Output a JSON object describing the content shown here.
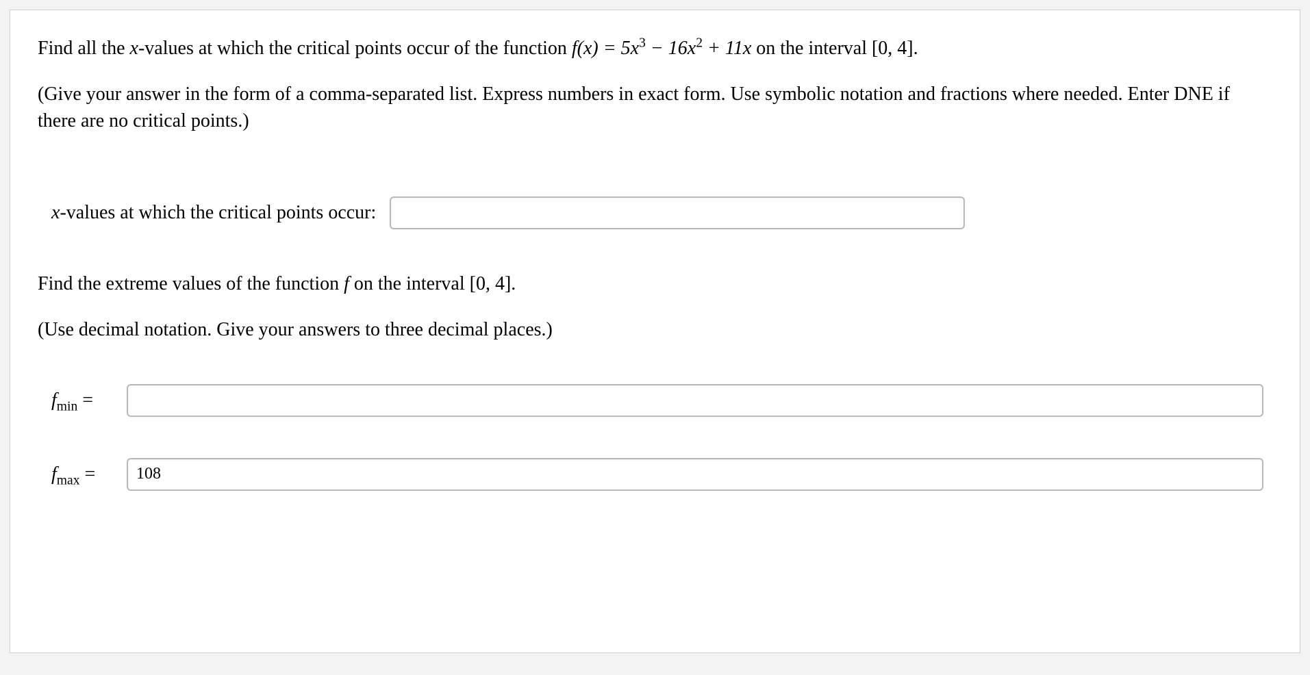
{
  "question": {
    "line1_prefix": "Find all the ",
    "line1_xvalues": "x",
    "line1_mid1": "-values at which the critical points occur of the function ",
    "fx_label": "f(x) = 5x",
    "cubed": "3",
    "minus": " − 16x",
    "squared": "2",
    "plus": " + 11x",
    "line1_suffix1": " on the interval ",
    "interval": "[0, 4].",
    "instructions": "(Give your answer in the form of a comma-separated list. Express numbers in exact form. Use symbolic notation and fractions where needed. Enter DNE if there are no critical points.)",
    "critical_label_prefix": "x",
    "critical_label_rest": "-values at which the critical points occur:",
    "part2_line1_prefix": "Find the extreme values of the function ",
    "part2_f": "f",
    "part2_line1_mid": " on the interval ",
    "part2_interval": "[0, 4].",
    "part2_instructions": "(Use decimal notation. Give your answers to three decimal places.)",
    "fmin_label_f": "f",
    "fmin_label_sub": "min",
    "eq": " =",
    "fmax_label_f": "f",
    "fmax_label_sub": "max"
  },
  "inputs": {
    "critical_points_value": "",
    "fmin_value": "",
    "fmax_value": "108"
  },
  "style": {
    "text_color": "#000000",
    "bg_color": "#ffffff",
    "page_border": "#d0d0d0",
    "outer_bg": "#f3f3f3",
    "input_border": "#b9b9b9",
    "font_size_body": 28
  }
}
